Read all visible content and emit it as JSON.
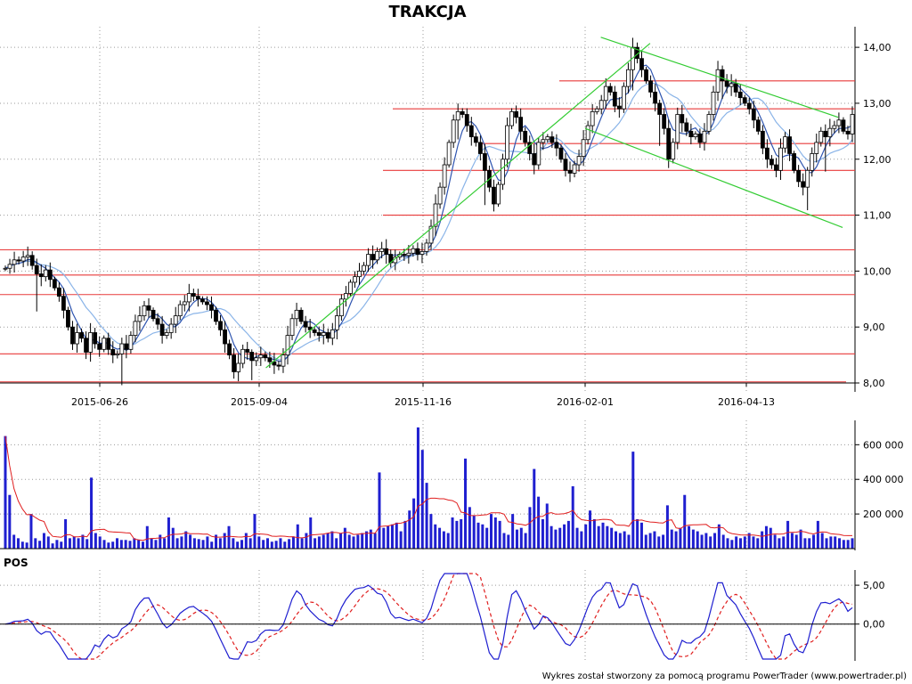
{
  "chart_data": [
    {
      "panel": "price",
      "type": "candlestick",
      "title": "TRAKCJA",
      "x_tick_labels": [
        "2015-06-26",
        "2015-09-04",
        "2015-11-16",
        "2016-02-01",
        "2016-04-13"
      ],
      "y_ticks": [
        8,
        9,
        10,
        11,
        12,
        13,
        14
      ],
      "y_tick_labels": [
        "8,00",
        "9,00",
        "10,00",
        "11,00",
        "12,00",
        "13,00",
        "14,00"
      ],
      "ylim": [
        8.0,
        14.4
      ],
      "grid": "dotted",
      "horizontal_levels": [
        8.02,
        8.52,
        9.58,
        9.93,
        10.38,
        11.0,
        11.8,
        12.28,
        12.9,
        13.4
      ],
      "trend_lines": [
        {
          "from": [
            "2015-09-07",
            8.27
          ],
          "to": [
            "2016-03-01",
            14.07
          ]
        },
        {
          "from": [
            "2016-02-08",
            14.18
          ],
          "to": [
            "2016-05-24",
            12.75
          ]
        },
        {
          "from": [
            "2016-02-01",
            12.55
          ],
          "to": [
            "2016-05-26",
            10.78
          ]
        }
      ],
      "close": [
        10.05,
        10.12,
        10.2,
        10.18,
        10.25,
        10.28,
        10.1,
        9.95,
        9.9,
        10.02,
        9.85,
        9.7,
        9.55,
        9.3,
        9.0,
        8.7,
        8.9,
        8.8,
        8.55,
        8.9,
        8.7,
        8.6,
        8.8,
        8.6,
        8.5,
        8.52,
        8.7,
        8.6,
        8.85,
        9.1,
        9.2,
        9.38,
        9.3,
        9.15,
        9.05,
        8.85,
        8.9,
        9.05,
        9.2,
        9.4,
        9.45,
        9.6,
        9.55,
        9.5,
        9.45,
        9.4,
        9.3,
        9.1,
        8.95,
        8.7,
        8.5,
        8.2,
        8.35,
        8.6,
        8.55,
        8.4,
        8.45,
        8.5,
        8.45,
        8.38,
        8.32,
        8.3,
        8.5,
        8.85,
        9.15,
        9.3,
        9.1,
        9.0,
        8.95,
        8.9,
        8.85,
        8.9,
        8.8,
        8.95,
        9.2,
        9.5,
        9.6,
        9.8,
        9.9,
        10.0,
        10.1,
        10.3,
        10.2,
        10.35,
        10.4,
        10.3,
        10.15,
        10.25,
        10.3,
        10.28,
        10.32,
        10.4,
        10.3,
        10.35,
        10.5,
        10.8,
        11.2,
        11.5,
        11.9,
        12.3,
        12.7,
        12.85,
        12.8,
        12.6,
        12.4,
        12.3,
        12.1,
        11.8,
        11.5,
        11.2,
        11.55,
        12.0,
        12.6,
        12.85,
        12.75,
        12.5,
        12.3,
        12.1,
        11.9,
        12.3,
        12.35,
        12.4,
        12.3,
        12.2,
        12.0,
        11.8,
        11.75,
        11.9,
        12.05,
        12.35,
        12.6,
        12.85,
        12.9,
        13.05,
        13.3,
        13.2,
        12.95,
        12.9,
        13.3,
        13.6,
        14.0,
        13.8,
        13.6,
        13.4,
        13.2,
        13.0,
        12.8,
        12.55,
        12.0,
        12.3,
        12.8,
        12.65,
        12.5,
        12.4,
        12.45,
        12.3,
        12.5,
        12.8,
        13.2,
        13.6,
        13.4,
        13.3,
        13.35,
        13.2,
        13.1,
        13.0,
        12.9,
        12.7,
        12.5,
        12.2,
        12.0,
        11.9,
        11.8,
        12.2,
        12.4,
        12.1,
        11.8,
        11.6,
        11.5,
        11.8,
        12.1,
        12.3,
        12.5,
        12.4,
        12.55,
        12.6,
        12.7,
        12.5,
        12.45,
        12.8
      ],
      "series": [
        {
          "name": "",
          "role": "short moving average",
          "color": "#2f55b0"
        },
        {
          "name": "",
          "role": "long moving average",
          "color": "#8ab4e8"
        }
      ]
    },
    {
      "panel": "volume",
      "type": "bar",
      "y_ticks": [
        200000,
        400000,
        600000
      ],
      "y_tick_labels": [
        "200 000",
        "400 000",
        "600 000"
      ],
      "ylim": [
        0,
        720000
      ],
      "bar_color": "#1f1fd0",
      "avg_color": "#e01e1e",
      "values": [
        650000,
        310000,
        80000,
        60000,
        40000,
        35000,
        200000,
        60000,
        45000,
        90000,
        70000,
        30000,
        50000,
        40000,
        170000,
        60000,
        70000,
        60000,
        80000,
        55000,
        410000,
        90000,
        70000,
        50000,
        35000,
        40000,
        60000,
        50000,
        50000,
        45000,
        60000,
        50000,
        40000,
        130000,
        60000,
        50000,
        80000,
        60000,
        180000,
        120000,
        60000,
        70000,
        100000,
        80000,
        60000,
        55000,
        50000,
        70000,
        40000,
        80000,
        60000,
        90000,
        130000,
        60000,
        40000,
        50000,
        90000,
        60000,
        200000,
        70000,
        50000,
        60000,
        40000,
        45000,
        60000,
        40000,
        55000,
        70000,
        140000,
        60000,
        90000,
        180000,
        60000,
        70000,
        80000,
        90000,
        100000,
        60000,
        90000,
        120000,
        80000,
        70000,
        80000,
        90000,
        100000,
        110000,
        90000,
        440000,
        120000,
        130000,
        140000,
        150000,
        100000,
        160000,
        220000,
        290000,
        700000,
        570000,
        380000,
        200000,
        140000,
        120000,
        100000,
        90000,
        180000,
        160000,
        170000,
        520000,
        240000,
        190000,
        150000,
        140000,
        120000,
        200000,
        180000,
        160000,
        90000,
        80000,
        200000,
        110000,
        120000,
        90000,
        240000,
        460000,
        300000,
        170000,
        260000,
        130000,
        110000,
        120000,
        140000,
        160000,
        360000,
        120000,
        100000,
        140000,
        220000,
        170000,
        130000,
        150000,
        130000,
        120000,
        100000,
        90000,
        100000,
        80000,
        560000,
        170000,
        150000,
        80000,
        90000,
        100000,
        70000,
        80000,
        250000,
        110000,
        100000,
        120000,
        310000,
        130000,
        110000,
        100000,
        80000,
        90000,
        70000,
        90000,
        140000,
        80000,
        60000,
        50000,
        70000,
        60000,
        70000,
        90000,
        70000,
        60000,
        100000,
        130000,
        120000,
        80000,
        60000,
        70000,
        160000,
        90000,
        80000,
        110000,
        60000,
        60000,
        80000,
        160000,
        90000,
        60000,
        70000,
        70000,
        60000,
        50000,
        50000,
        60000
      ]
    },
    {
      "panel": "oscillator",
      "type": "line",
      "label": "POS",
      "y_ticks": [
        0,
        5
      ],
      "y_tick_labels": [
        "0,00",
        "5,00"
      ],
      "ylim": [
        -4.5,
        6.5
      ],
      "series": [
        {
          "name": "",
          "role": "oscillator",
          "color": "#1f1fd0"
        },
        {
          "name": "",
          "role": "signal",
          "color": "#e01e1e",
          "dashed": true
        }
      ]
    }
  ],
  "footer": {
    "credit": "Wykres został stworzony za pomocą programu PowerTrader (www.powertrader.pl)"
  }
}
